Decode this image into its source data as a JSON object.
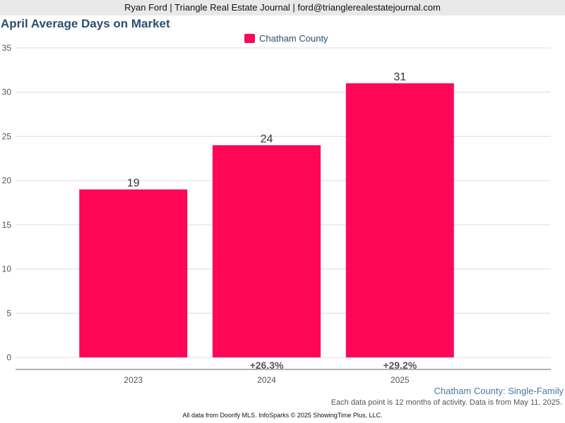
{
  "header": {
    "text": "Ryan Ford | Triangle Real Estate Journal | ford@trianglerealestatejournal.com"
  },
  "chart_data": {
    "type": "bar",
    "title": "April Average Days on Market",
    "categories": [
      "2023",
      "2024",
      "2025"
    ],
    "series": [
      {
        "name": "Chatham County",
        "values": [
          19,
          24,
          31
        ],
        "color": "#ff0657"
      }
    ],
    "changes": [
      "",
      "+26.3%",
      "+29.2%"
    ],
    "ylim": [
      0,
      35
    ],
    "yticks": [
      "35",
      "30",
      "25",
      "20",
      "15",
      "10",
      "5",
      "0"
    ],
    "grid": true,
    "legend_position": "top-center",
    "subtitle": "Chatham County: Single-Family",
    "note": "Each data point is 12 months of activity. Data is from May 11, 2025.",
    "footer": "All data from Doorify MLS. InfoSparks © 2025 ShowingTime Plus, LLC."
  }
}
